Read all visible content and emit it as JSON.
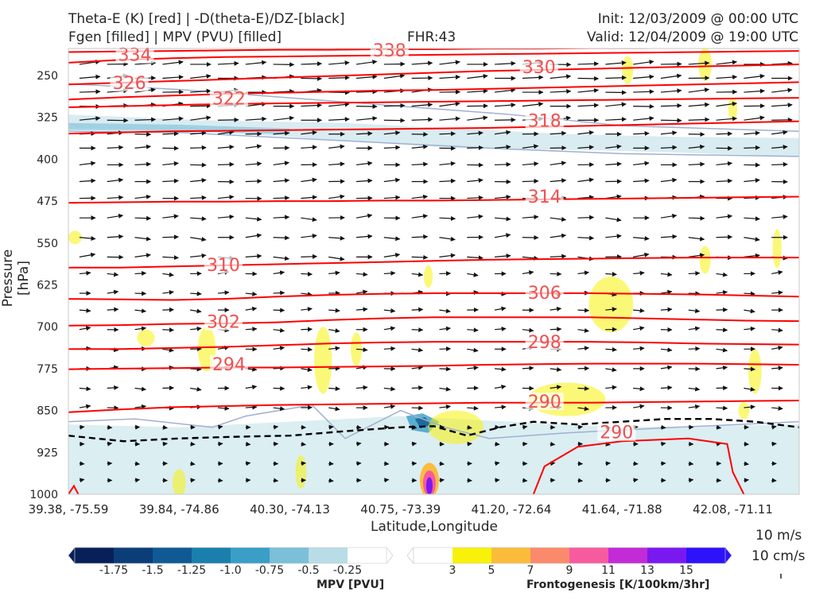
{
  "header": {
    "line1_left": "Theta-E (K) [red] | -D(theta-E)/DZ-[black]",
    "line2_left": "Fgen [filled] | MPV (PVU) [filled]",
    "fhr": "FHR:43",
    "init": "Init: 12/03/2009 @ 00:00 UTC",
    "valid": "Valid: 12/04/2009 @ 19:00 UTC"
  },
  "colors": {
    "theta_e": "#ff0000",
    "theta_label": "#f05050",
    "dtheta_dz": "#000000",
    "mpv_contour": "#a0b0d0",
    "wind_arrow": "#111111"
  },
  "chart_data": {
    "type": "contour-cross-section",
    "ylabel": "Pressure [hPa]",
    "xlabel": "Latitude,Longitude",
    "yticks": [
      "250",
      "325",
      "400",
      "475",
      "550",
      "625",
      "700",
      "775",
      "850",
      "925",
      "1000"
    ],
    "ytick_values": [
      250,
      325,
      400,
      475,
      550,
      625,
      700,
      775,
      850,
      925,
      1000
    ],
    "ylim": [
      1000,
      200
    ],
    "xticks": [
      "39.38, -75.59",
      "39.84, -74.86",
      "40.30, -74.13",
      "40.75, -73.39",
      "41.20, -72.64",
      "41.64, -71.88",
      "42.08, -71.11"
    ],
    "xlim": [
      0,
      6.6
    ],
    "theta_e_contours": [
      {
        "label": "334",
        "label_x": 0.6,
        "level": 214,
        "p": [
          227,
          222,
          219,
          217,
          216,
          215,
          214,
          213,
          212,
          211,
          210,
          209,
          208,
          207,
          206
        ]
      },
      {
        "label": "338",
        "label_x": 2.9,
        "level": 206,
        "p": [
          208,
          207,
          206,
          205,
          204,
          204,
          203,
          203,
          202,
          202,
          201,
          201,
          200,
          200,
          200
        ]
      },
      {
        "label": "330",
        "label_x": 4.25,
        "level": 236,
        "p": [
          266,
          263,
          260,
          257,
          254,
          251,
          248,
          245,
          242,
          240,
          238,
          236,
          234,
          232,
          230
        ]
      },
      {
        "label": "326",
        "label_x": 0.55,
        "level": 264,
        "p": [
          293,
          289,
          286,
          283,
          281,
          279,
          277,
          276,
          274,
          272,
          270,
          268,
          266,
          264,
          262
        ]
      },
      {
        "label": "322",
        "label_x": 1.45,
        "level": 292,
        "p": [
          307,
          305,
          303,
          301,
          300,
          299,
          298,
          297,
          296,
          295,
          294,
          293,
          292,
          291,
          290
        ]
      },
      {
        "label": "318",
        "label_x": 4.3,
        "level": 332,
        "p": [
          354,
          352,
          350,
          349,
          348,
          347,
          346,
          345,
          344,
          342,
          340,
          338,
          336,
          334,
          332
        ]
      },
      {
        "label": "314",
        "label_x": 4.3,
        "level": 468,
        "p": [
          478,
          477,
          476,
          476,
          475,
          475,
          474,
          474,
          473,
          472,
          471,
          470,
          469,
          468,
          467
        ]
      },
      {
        "label": "310",
        "label_x": 1.4,
        "level": 590,
        "p": [
          594,
          594,
          592,
          590,
          588,
          586,
          584,
          582,
          580,
          579,
          578,
          577,
          576,
          576,
          576
        ]
      },
      {
        "label": "306",
        "label_x": 4.3,
        "level": 640,
        "p": [
          650,
          651,
          652,
          650,
          646,
          643,
          641,
          640,
          640,
          640,
          640,
          641,
          642,
          644,
          646
        ]
      },
      {
        "label": "302",
        "label_x": 1.4,
        "level": 692,
        "p": [
          698,
          697,
          695,
          694,
          692,
          688,
          685,
          683,
          683,
          683,
          683,
          685,
          687,
          689,
          690
        ]
      },
      {
        "label": "298",
        "label_x": 4.3,
        "level": 728,
        "p": [
          740,
          740,
          738,
          736,
          733,
          730,
          728,
          727,
          727,
          727,
          727,
          728,
          730,
          731,
          732
        ]
      },
      {
        "label": "294",
        "label_x": 1.45,
        "level": 768,
        "p": [
          776,
          775,
          774,
          773,
          773,
          772,
          771,
          770,
          768,
          767,
          766,
          766,
          766,
          767,
          768
        ]
      },
      {
        "label": "290",
        "label_x": 4.3,
        "level": 835,
        "p": [
          853,
          848,
          844,
          842,
          840,
          839,
          838,
          837,
          836,
          836,
          836,
          835,
          834,
          833,
          832
        ]
      },
      {
        "label": "290",
        "label_x": 4.95,
        "level": 890,
        "p": null
      }
    ],
    "dtheta_dz_contour": {
      "x": [
        0.0,
        0.5,
        1.0,
        1.5,
        2.0,
        2.5,
        3.0,
        3.3,
        3.6,
        3.9,
        4.2,
        4.6,
        5.0,
        5.4,
        5.8,
        6.2,
        6.6
      ],
      "p": [
        895,
        905,
        900,
        897,
        895,
        887,
        880,
        878,
        895,
        880,
        870,
        875,
        870,
        865,
        865,
        870,
        880
      ]
    },
    "features": [
      "Fgen maximum near 41.0, -72.9 at 1000 hPa",
      "MPV minimum near 40.9, -73.1 at 875 hPa"
    ],
    "wind_reference": [
      "10 m/s",
      "10 cm/s"
    ]
  },
  "colorbars": {
    "mpv": {
      "ticks": [
        "-1.75",
        "-1.5",
        "-1.25",
        "-1.0",
        "-0.75",
        "-0.5",
        "-0.25"
      ],
      "colors": [
        "#08205a",
        "#0b3e78",
        "#0f5a94",
        "#1a7fad",
        "#3a9ec6",
        "#7bbfd9",
        "#b8dde6",
        "#ffffff"
      ],
      "label": "MPV [PVU]"
    },
    "fgen": {
      "ticks": [
        "3",
        "5",
        "7",
        "9",
        "11",
        "13",
        "15"
      ],
      "colors": [
        "#ffffff",
        "#f8f20a",
        "#fbbc3c",
        "#fb8a6c",
        "#f75b9f",
        "#c22bd6",
        "#7a18f2",
        "#2d12fb"
      ],
      "label": "Frontogenesis [K/100km/3hr]"
    }
  }
}
